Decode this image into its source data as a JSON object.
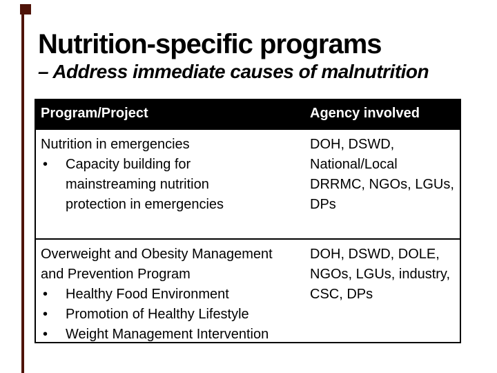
{
  "slide": {
    "title": "Nutrition-specific programs",
    "subtitle": "– Address immediate causes of malnutrition",
    "colors": {
      "accent": "#4f1308",
      "header_bg": "#000000",
      "header_text": "#ffffff",
      "body_text": "#000000",
      "background": "#ffffff"
    },
    "bullet_glyph": "•",
    "table": {
      "header": {
        "col1": "Program/Project",
        "col2": "Agency involved"
      },
      "rows": [
        {
          "program_lines": [
            "Nutrition in emergencies"
          ],
          "program_bullets": [
            [
              "Capacity building for",
              "mainstreaming nutrition",
              "protection in emergencies"
            ]
          ],
          "agency_lines": [
            "DOH, DSWD,",
            "National/Local",
            "DRRMC, NGOs, LGUs,",
            "DPs"
          ]
        },
        {
          "program_lines": [
            "Overweight and Obesity Management",
            "and Prevention Program"
          ],
          "program_bullets": [
            [
              "Healthy Food Environment"
            ],
            [
              "Promotion of Healthy Lifestyle"
            ],
            [
              "Weight Management Intervention"
            ]
          ],
          "agency_lines": [
            "DOH, DSWD, DOLE,",
            "NGOs, LGUs, industry,",
            "CSC, DPs"
          ]
        }
      ]
    }
  }
}
